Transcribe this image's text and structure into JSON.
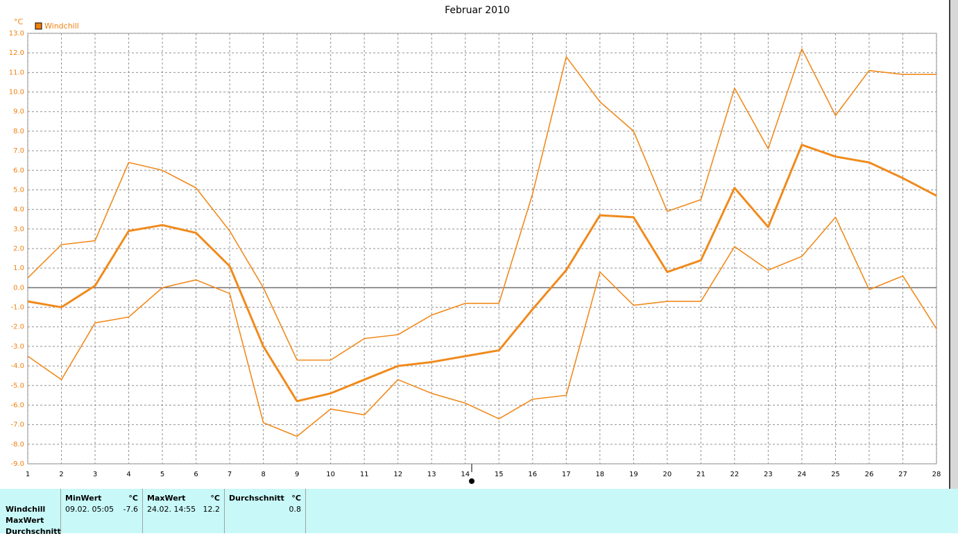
{
  "chart_data": {
    "type": "line",
    "title": "Februar 2010",
    "ylabel": "°C",
    "legend": "Windchill",
    "legend_color": "#f08010",
    "x": [
      1,
      2,
      3,
      4,
      5,
      6,
      7,
      8,
      9,
      10,
      11,
      12,
      13,
      14,
      15,
      16,
      17,
      18,
      19,
      20,
      21,
      22,
      23,
      24,
      25,
      26,
      27,
      28
    ],
    "xlim": [
      1,
      28
    ],
    "xticks": [
      1,
      2,
      3,
      4,
      5,
      6,
      7,
      8,
      9,
      10,
      11,
      12,
      13,
      14,
      15,
      16,
      17,
      18,
      19,
      20,
      21,
      22,
      23,
      24,
      25,
      26,
      27,
      28
    ],
    "ylim": [
      -9,
      13
    ],
    "yticks": [
      {
        "value": -9,
        "label": "-9.0"
      },
      {
        "value": -8,
        "label": "-8.0"
      },
      {
        "value": -7,
        "label": "-7.0"
      },
      {
        "value": -6,
        "label": "-6.0"
      },
      {
        "value": -5,
        "label": "-5.0"
      },
      {
        "value": -4,
        "label": "-4.0"
      },
      {
        "value": -3,
        "label": "-3.0"
      },
      {
        "value": -2,
        "label": "-2.0"
      },
      {
        "value": -1,
        "label": "-1.0"
      },
      {
        "value": 0,
        "label": "0.0"
      },
      {
        "value": 1,
        "label": "1.0"
      },
      {
        "value": 2,
        "label": "2.0"
      },
      {
        "value": 3,
        "label": "3.0"
      },
      {
        "value": 4,
        "label": "4.0"
      },
      {
        "value": 5,
        "label": "5.0"
      },
      {
        "value": 6,
        "label": "6.0"
      },
      {
        "value": 7,
        "label": "7.0"
      },
      {
        "value": 8,
        "label": "8.0"
      },
      {
        "value": 9,
        "label": "9.0"
      },
      {
        "value": 10,
        "label": "10.0"
      },
      {
        "value": 11,
        "label": "11.0"
      },
      {
        "value": 12,
        "label": "12.0"
      },
      {
        "value": 13,
        "label": "13.0"
      }
    ],
    "grid": true,
    "series": [
      {
        "color": "#f08a1c",
        "width": 1.6,
        "values": [
          0.5,
          2.2,
          2.4,
          6.4,
          6.0,
          5.1,
          2.9,
          0.0,
          -3.7,
          -3.7,
          -2.6,
          -2.4,
          -1.4,
          -0.8,
          -0.8,
          4.8,
          11.8,
          9.5,
          8.0,
          3.9,
          4.5,
          10.2,
          7.1,
          12.2,
          8.8,
          11.1,
          10.9,
          10.9
        ]
      },
      {
        "color": "#f08a1c",
        "width": 3,
        "values": [
          -0.7,
          -1.0,
          0.1,
          2.9,
          3.2,
          2.8,
          1.1,
          -3.0,
          -5.8,
          -5.4,
          -4.7,
          -4.0,
          -3.8,
          -3.5,
          -3.2,
          -1.1,
          0.9,
          3.7,
          3.6,
          0.8,
          1.4,
          5.1,
          3.1,
          7.3,
          6.7,
          6.4,
          5.6,
          4.7
        ]
      },
      {
        "color": "#f08a1c",
        "width": 1.6,
        "values": [
          -3.5,
          -4.7,
          -1.8,
          -1.5,
          0.0,
          0.4,
          -0.3,
          -6.9,
          -7.6,
          -6.2,
          -6.5,
          -4.7,
          -5.4,
          -5.9,
          -6.7,
          -5.7,
          -5.5,
          0.8,
          -0.9,
          -0.7,
          -0.7,
          2.1,
          0.9,
          1.6,
          3.6,
          -0.1,
          0.6,
          -2.1
        ]
      }
    ]
  },
  "table": {
    "rows_labels": [
      "Windchill",
      "MaxWert",
      "Durchschnitt"
    ],
    "columns": [
      {
        "header": "MinWert",
        "unit": "°C",
        "time": "09.02.  05:05",
        "value": "-7.6"
      },
      {
        "header": "MaxWert",
        "unit": "°C",
        "time": "24.02.  14:55",
        "value": "12.2"
      },
      {
        "header": "Durchschnitt",
        "unit": "°C",
        "time": "",
        "value": "0.8"
      }
    ]
  }
}
